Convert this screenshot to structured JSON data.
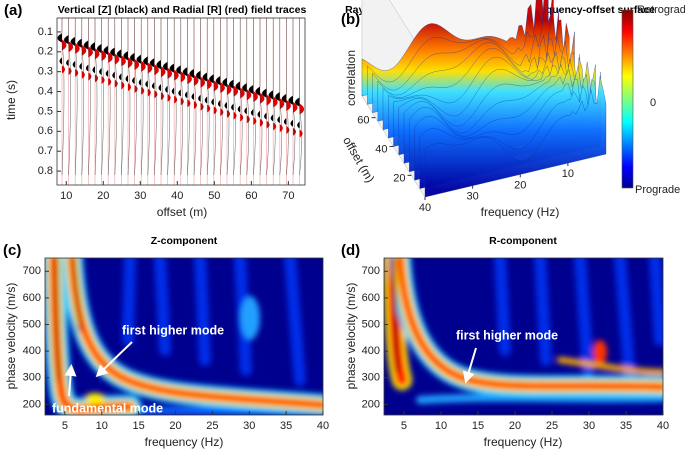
{
  "chart_data": [
    {
      "type": "wiggle",
      "label": "(a)",
      "title": "Vertical [Z] (black) and Radial [R] (red) field traces",
      "xlabel": "offset (m)",
      "ylabel": "time (s)",
      "xlim": [
        7.5,
        74.5
      ],
      "ylim": [
        0.03,
        0.87
      ],
      "y_reversed": true,
      "xticks": [
        10,
        20,
        30,
        40,
        50,
        60,
        70
      ],
      "yticks": [
        0.1,
        0.2,
        0.3,
        0.4,
        0.5,
        0.6,
        0.7,
        0.8
      ]
    },
    {
      "type": "surface",
      "label": "(b)",
      "title": "Rayleigh-wave Particle Motion (RPM) frequency-offset surface",
      "xlabel": "frequency (Hz)",
      "ylabel": "offset (m)",
      "zlabel": "correlation",
      "xlim": [
        2,
        40
      ],
      "ylim": [
        5,
        75
      ],
      "xticks": [
        40,
        30,
        20,
        10
      ],
      "yticks": [
        20,
        40,
        60
      ],
      "colorbar_labels": [
        "Retrograde",
        "0",
        "Prograde"
      ]
    },
    {
      "type": "heatmap",
      "label": "(c)",
      "title": "Z-component",
      "xlabel": "frequency (Hz)",
      "ylabel": "phase velocity (m/s)",
      "xlim": [
        2.3,
        40
      ],
      "ylim": [
        160,
        750
      ],
      "xticks": [
        5,
        10,
        15,
        20,
        25,
        30,
        35,
        40
      ],
      "yticks": [
        200,
        300,
        400,
        500,
        600,
        700
      ],
      "annotations": [
        "first higher mode",
        "fundamental mode"
      ]
    },
    {
      "type": "heatmap",
      "label": "(d)",
      "title": "R-component",
      "xlabel": "frequency (Hz)",
      "ylabel": "phase velocity (m/s)",
      "xlim": [
        2.3,
        40
      ],
      "ylim": [
        160,
        750
      ],
      "xticks": [
        5,
        10,
        15,
        20,
        25,
        30,
        35,
        40
      ],
      "yticks": [
        200,
        300,
        400,
        500,
        600,
        700
      ],
      "annotations": [
        "first higher mode"
      ]
    }
  ]
}
